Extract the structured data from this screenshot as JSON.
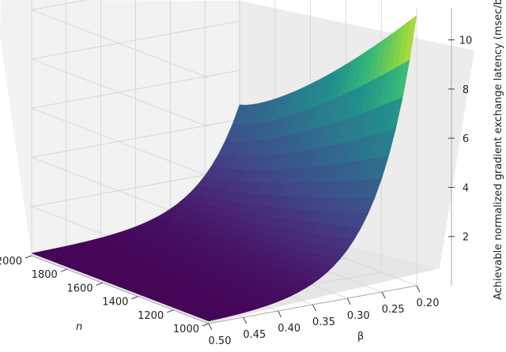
{
  "chart_data": {
    "type": "surface",
    "title": "",
    "xlabel": "n",
    "ylabel": "β",
    "zlabel": "Achievable normalized gradient exchange latency (msec/bit)",
    "x_ticks": [
      "2000",
      "1800",
      "1600",
      "1400",
      "1200",
      "1000"
    ],
    "y_ticks": [
      "0.50",
      "0.45",
      "0.40",
      "0.35",
      "0.30",
      "0.25",
      "0.20"
    ],
    "z_ticks": [
      "2",
      "4",
      "6",
      "8",
      "10"
    ],
    "xlim": [
      1000,
      2000
    ],
    "ylim": [
      0.2,
      0.5
    ],
    "zlim": [
      0,
      11.3
    ],
    "colormap": "viridis",
    "grid": true,
    "corner_values": [
      {
        "n": 1000,
        "beta": 0.2,
        "z": 11.0
      },
      {
        "n": 2000,
        "beta": 0.2,
        "z": 4.6
      },
      {
        "n": 1000,
        "beta": 0.5,
        "z": 0.1
      },
      {
        "n": 2000,
        "beta": 0.5,
        "z": 0.1
      }
    ],
    "colors": {
      "pane": "#f2f2f2",
      "grid": "#d0d0d0",
      "edge": "#bdbdbd"
    }
  }
}
